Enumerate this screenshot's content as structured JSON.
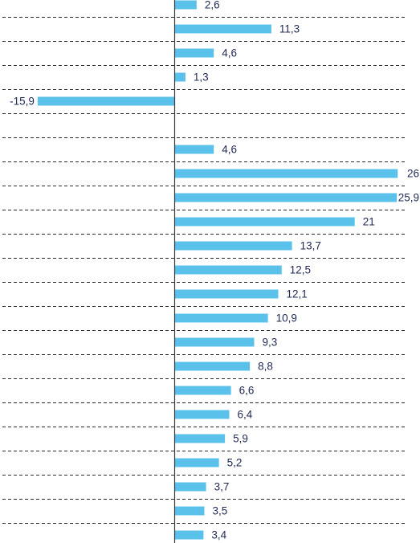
{
  "chart_data": {
    "type": "bar",
    "orientation": "horizontal",
    "grid": "dashed horizontal separators",
    "values": [
      2.6,
      11.3,
      4.6,
      1.3,
      -15.9,
      null,
      4.6,
      26,
      25.9,
      21,
      13.7,
      12.5,
      12.1,
      10.9,
      9.3,
      8.8,
      6.6,
      6.4,
      5.9,
      5.2,
      3.7,
      3.5,
      3.4
    ],
    "data_labels": [
      "2,6",
      "11,3",
      "4,6",
      "1,3",
      "-15,9",
      "",
      "4,6",
      "26",
      "25,9",
      "21",
      "13,7",
      "12,5",
      "12,1",
      "10,9",
      "9,3",
      "8,8",
      "6,6",
      "6,4",
      "5,9",
      "5,2",
      "3,7",
      "3,5",
      "3,4"
    ],
    "colors": {
      "bar": "#59c1ea",
      "label": "#1f2a55",
      "grid": "#2b2b2b",
      "axis": "#3a3a3a"
    }
  }
}
